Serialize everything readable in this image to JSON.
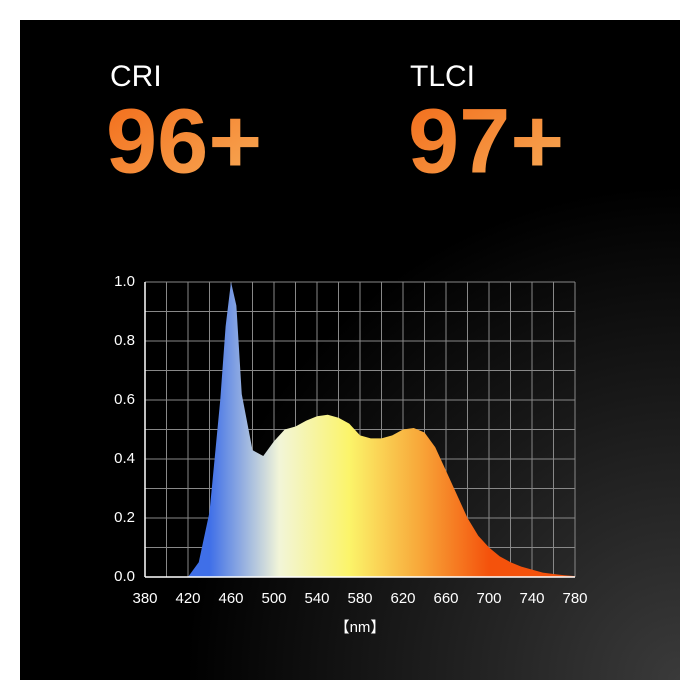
{
  "metrics": [
    {
      "label": "CRI",
      "value": "96+"
    },
    {
      "label": "TLCI",
      "value": "97+"
    }
  ],
  "chart_data": {
    "type": "area",
    "xlabel": "【nm】",
    "x": [
      420,
      430,
      440,
      450,
      455,
      460,
      465,
      470,
      480,
      490,
      500,
      510,
      520,
      530,
      540,
      550,
      560,
      570,
      580,
      590,
      600,
      610,
      620,
      630,
      640,
      650,
      660,
      670,
      680,
      690,
      700,
      710,
      720,
      730,
      740,
      750,
      760,
      770,
      780
    ],
    "values": [
      0.0,
      0.05,
      0.22,
      0.6,
      0.85,
      1.0,
      0.92,
      0.62,
      0.43,
      0.41,
      0.46,
      0.5,
      0.51,
      0.53,
      0.545,
      0.55,
      0.54,
      0.52,
      0.48,
      0.47,
      0.47,
      0.48,
      0.5,
      0.505,
      0.49,
      0.44,
      0.36,
      0.28,
      0.2,
      0.14,
      0.1,
      0.07,
      0.05,
      0.035,
      0.025,
      0.015,
      0.01,
      0.006,
      0.003
    ],
    "xlim": [
      380,
      780
    ],
    "ylim": [
      0,
      1
    ],
    "xticks": [
      380,
      420,
      460,
      500,
      540,
      580,
      620,
      660,
      700,
      740,
      780
    ],
    "yticks": [
      {
        "value": 0,
        "label": "0.0"
      },
      0.2,
      0.4,
      0.6,
      0.8,
      {
        "value": 1,
        "label": "1.0"
      }
    ],
    "xgrid": [
      400,
      420,
      440,
      460,
      480,
      500,
      520,
      540,
      560,
      580,
      600,
      620,
      640,
      660,
      680,
      700,
      720,
      740,
      760,
      780
    ],
    "ygrid": [
      0.1,
      0.2,
      0.3,
      0.4,
      0.5,
      0.6,
      0.7,
      0.8,
      0.9,
      1.0
    ],
    "colors": [
      "#3f6fe8",
      "#f2f5d8",
      "#fbf46a",
      "#f8a83a",
      "#f4520c"
    ]
  }
}
